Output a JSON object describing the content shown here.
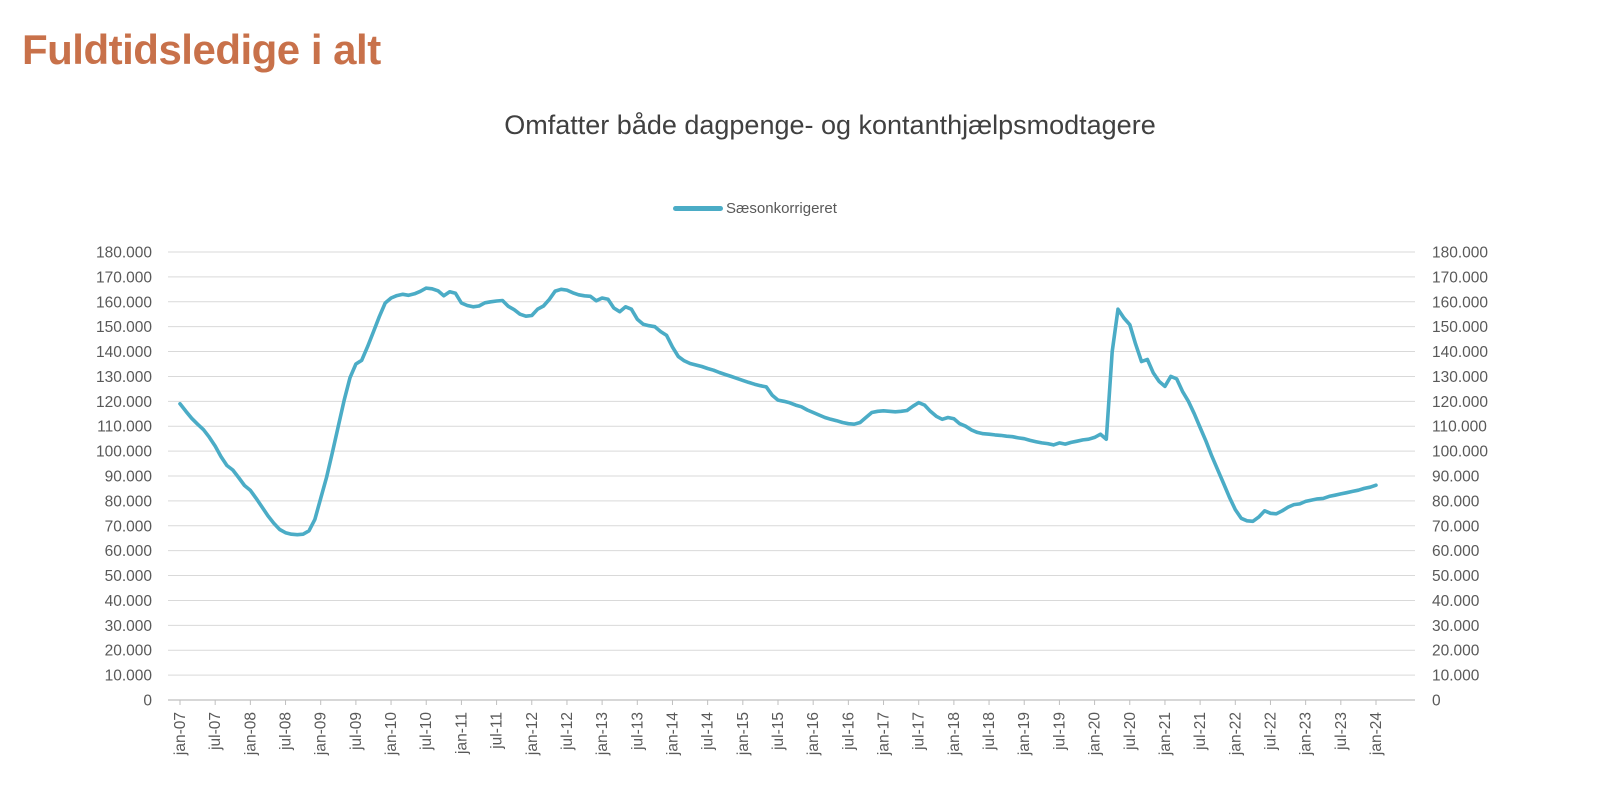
{
  "page": {
    "title": "Fuldtidsledige i alt"
  },
  "chart": {
    "title": "Omfatter både dagpenge- og kontanthjælpsmodtagere",
    "legend_label": "Sæsonkorrigeret",
    "colors": {
      "series": "#4BACC6",
      "page_title": "#C8714A",
      "chart_title": "#404040",
      "axis_text": "#595959",
      "gridline": "#D9D9D9",
      "axis_line": "#BFBFBF"
    }
  },
  "chart_data": {
    "type": "line",
    "title": "Omfatter både dagpenge- og kontanthjælpsmodtagere",
    "xlabel": "",
    "ylabel": "",
    "ylim": [
      0,
      180000
    ],
    "y_tick_step": 10000,
    "y_tick_labels": [
      "0",
      "10.000",
      "20.000",
      "30.000",
      "40.000",
      "50.000",
      "60.000",
      "70.000",
      "80.000",
      "90.000",
      "100.000",
      "110.000",
      "120.000",
      "130.000",
      "140.000",
      "150.000",
      "160.000",
      "170.000",
      "180.000"
    ],
    "x_tick_labels": [
      "jan-07",
      "jul-07",
      "jan-08",
      "jul-08",
      "jan-09",
      "jul-09",
      "jan-10",
      "jul-10",
      "jan-11",
      "jul-11",
      "jan-12",
      "jul-12",
      "jan-13",
      "jul-13",
      "jan-14",
      "jul-14",
      "jan-15",
      "jul-15",
      "jan-16",
      "jul-16",
      "jan-17",
      "jul-17",
      "jan-18",
      "jul-18",
      "jan-19",
      "jul-19",
      "jan-20",
      "jul-20",
      "jan-21",
      "jul-21",
      "jan-22",
      "jul-22",
      "jan-23",
      "jul-23",
      "jan-24"
    ],
    "x_months_per_tick": 6,
    "grid": true,
    "legend_position": "top",
    "y_axis": "both-sides",
    "series": [
      {
        "name": "Sæsonkorrigeret",
        "color": "#4BACC6",
        "start_month": "jan-07",
        "end_month": "jan-24",
        "values": [
          119000,
          116000,
          113200,
          110800,
          108600,
          105600,
          102000,
          97800,
          94200,
          92400,
          89400,
          86200,
          84200,
          81000,
          77500,
          74000,
          71000,
          68500,
          67200,
          66600,
          66400,
          66600,
          68000,
          72500,
          81000,
          89500,
          99500,
          110000,
          120500,
          129500,
          135000,
          136500,
          142000,
          148000,
          154000,
          159500,
          161500,
          162500,
          163000,
          162600,
          163200,
          164200,
          165500,
          165200,
          164400,
          162400,
          164000,
          163400,
          159500,
          158500,
          158000,
          158300,
          159600,
          160000,
          160300,
          160500,
          158200,
          156800,
          155000,
          154200,
          154500,
          157000,
          158300,
          161000,
          164300,
          165000,
          164700,
          163600,
          162800,
          162400,
          162200,
          160400,
          161500,
          161000,
          157500,
          156000,
          158000,
          157000,
          153000,
          151000,
          150400,
          150000,
          148000,
          146500,
          141800,
          138000,
          136300,
          135200,
          134600,
          134000,
          133200,
          132500,
          131600,
          130800,
          130000,
          129200,
          128400,
          127600,
          126900,
          126300,
          125800,
          122500,
          120500,
          120000,
          119400,
          118500,
          117800,
          116500,
          115500,
          114500,
          113500,
          112800,
          112200,
          111500,
          111000,
          110800,
          111500,
          113500,
          115500,
          116000,
          116200,
          116000,
          115800,
          116000,
          116300,
          118000,
          119500,
          118500,
          116000,
          114000,
          112800,
          113500,
          113000,
          111000,
          110000,
          108500,
          107500,
          107000,
          106800,
          106500,
          106300,
          106000,
          105800,
          105300,
          105000,
          104300,
          103800,
          103300,
          103000,
          102500,
          103300,
          102800,
          103500,
          104000,
          104500,
          104800,
          105500,
          106800,
          104800,
          140000,
          157000,
          153500,
          150800,
          143000,
          136000,
          136800,
          131500,
          128000,
          126000,
          130000,
          129000,
          124000,
          120000,
          115000,
          109500,
          104000,
          98000,
          92500,
          87000,
          81500,
          76500,
          73000,
          72000,
          71800,
          73500,
          76000,
          75000,
          74800,
          76000,
          77500,
          78500,
          78800,
          79800,
          80300,
          80800,
          81000,
          81800,
          82300,
          82800,
          83300,
          83800,
          84300,
          85000,
          85500,
          86300
        ]
      }
    ]
  }
}
